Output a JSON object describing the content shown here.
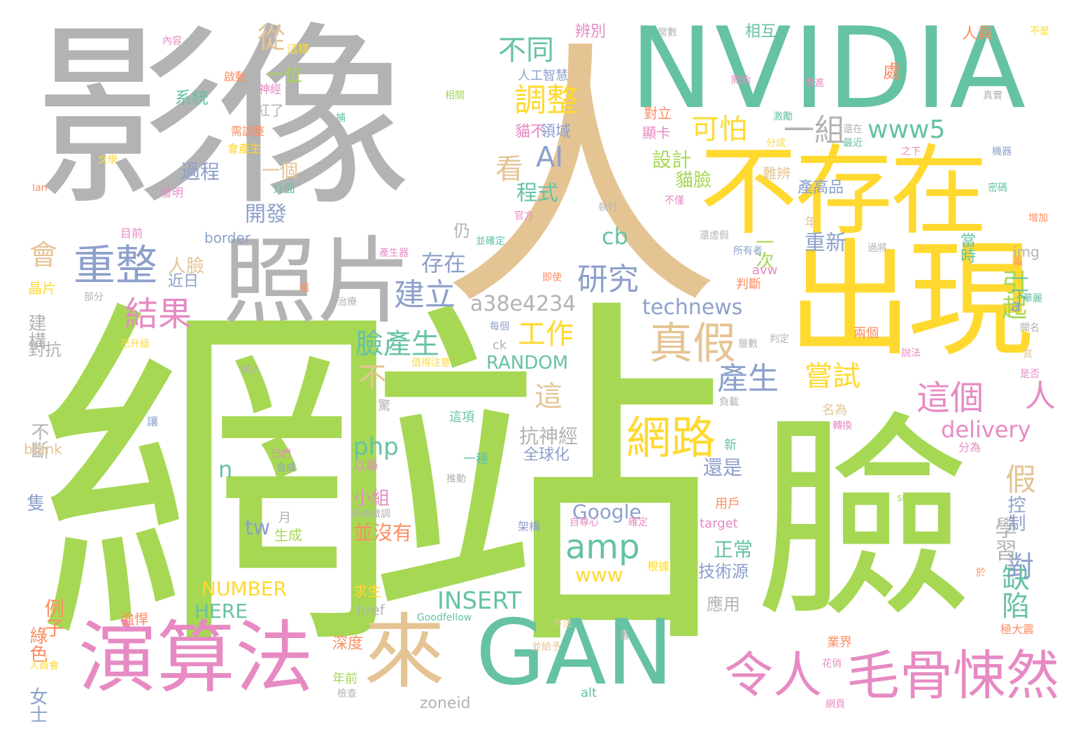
{
  "colors": {
    "gray": "#b3b3b3",
    "green": "#a6d854",
    "teal": "#66c2a5",
    "yellow": "#ffd92f",
    "tan": "#e5c494",
    "blue": "#8da0cb",
    "pink": "#e78ac3",
    "orange": "#fc8d62"
  },
  "words": [
    {
      "text": "影像",
      "color": "gray"
    },
    {
      "text": "人",
      "color": "tan"
    },
    {
      "text": "NVIDIA",
      "color": "teal"
    },
    {
      "text": "網站",
      "color": "green"
    },
    {
      "text": "臉",
      "color": "green"
    },
    {
      "text": "不存在",
      "color": "yellow"
    },
    {
      "text": "出現",
      "color": "yellow"
    },
    {
      "text": "照片",
      "color": "gray"
    },
    {
      "text": "演算法",
      "color": "pink"
    },
    {
      "text": "GAN",
      "color": "teal"
    },
    {
      "text": "來",
      "color": "tan"
    },
    {
      "text": "毛骨悚然",
      "color": "pink"
    },
    {
      "text": "令人",
      "color": "pink"
    },
    {
      "text": "重整",
      "color": "blue"
    },
    {
      "text": "結果",
      "color": "pink"
    },
    {
      "text": "網路",
      "color": "yellow"
    },
    {
      "text": "真假",
      "color": "tan"
    },
    {
      "text": "這個",
      "color": "pink"
    },
    {
      "text": "人",
      "color": "pink"
    },
    {
      "text": "調整",
      "color": "yellow"
    },
    {
      "text": "amp",
      "color": "teal"
    },
    {
      "text": "研究",
      "color": "blue"
    },
    {
      "text": "建立",
      "color": "blue"
    },
    {
      "text": "a38e4234",
      "color": "gray"
    },
    {
      "text": "可怕",
      "color": "yellow"
    },
    {
      "text": "一組",
      "color": "gray"
    },
    {
      "text": "www5",
      "color": "teal"
    },
    {
      "text": "不同",
      "color": "teal"
    },
    {
      "text": "AI",
      "color": "blue"
    },
    {
      "text": "看",
      "color": "tan"
    },
    {
      "text": "產生",
      "color": "blue"
    },
    {
      "text": "嘗試",
      "color": "yellow"
    },
    {
      "text": "臉產生",
      "color": "teal"
    },
    {
      "text": "工作",
      "color": "yellow"
    },
    {
      "text": "technews",
      "color": "blue"
    },
    {
      "text": "delivery",
      "color": "pink"
    },
    {
      "text": "缺陷",
      "color": "teal"
    },
    {
      "text": "對",
      "color": "blue"
    },
    {
      "text": "假",
      "color": "tan"
    },
    {
      "text": "學習",
      "color": "gray"
    },
    {
      "text": "引起",
      "color": "green"
    },
    {
      "text": "從",
      "color": "tan"
    },
    {
      "text": "會",
      "color": "tan"
    },
    {
      "text": "存在",
      "color": "blue"
    },
    {
      "text": "開發",
      "color": "blue"
    },
    {
      "text": "程式",
      "color": "teal"
    },
    {
      "text": "設計",
      "color": "green"
    },
    {
      "text": "貓臉",
      "color": "green"
    },
    {
      "text": "重新",
      "color": "blue"
    },
    {
      "text": "一次",
      "color": "green"
    },
    {
      "text": "cb",
      "color": "teal"
    },
    {
      "text": "過程",
      "color": "blue"
    },
    {
      "text": "一個",
      "color": "tan"
    },
    {
      "text": "一位",
      "color": "green"
    },
    {
      "text": "系統",
      "color": "teal"
    },
    {
      "text": "人臉",
      "color": "tan"
    },
    {
      "text": "近日",
      "color": "blue"
    },
    {
      "text": "建構",
      "color": "gray"
    },
    {
      "text": "對抗",
      "color": "gray"
    },
    {
      "text": "不",
      "color": "tan"
    },
    {
      "text": "這",
      "color": "tan"
    },
    {
      "text": "RANDOM",
      "color": "teal"
    },
    {
      "text": "php",
      "color": "teal"
    },
    {
      "text": "n",
      "color": "teal"
    },
    {
      "text": "Google",
      "color": "blue"
    },
    {
      "text": "tw",
      "color": "blue"
    },
    {
      "text": "www",
      "color": "yellow"
    },
    {
      "text": "INSERT",
      "color": "teal"
    },
    {
      "text": "NUMBER",
      "color": "yellow"
    },
    {
      "text": "HERE",
      "color": "teal"
    },
    {
      "text": "抗神經",
      "color": "gray"
    },
    {
      "text": "全球化",
      "color": "blue"
    },
    {
      "text": "小組",
      "color": "pink"
    },
    {
      "text": "並沒有",
      "color": "orange"
    },
    {
      "text": "不斷",
      "color": "gray"
    },
    {
      "text": "例子",
      "color": "orange"
    },
    {
      "text": "綠色",
      "color": "orange"
    },
    {
      "text": "女士",
      "color": "blue"
    },
    {
      "text": "還是",
      "color": "blue"
    },
    {
      "text": "正常",
      "color": "teal"
    },
    {
      "text": "技術源",
      "color": "blue"
    },
    {
      "text": "應用",
      "color": "gray"
    },
    {
      "text": "控制",
      "color": "blue"
    },
    {
      "text": "一下",
      "color": "teal"
    },
    {
      "text": "a",
      "color": "blue"
    },
    {
      "text": "年",
      "color": "tan"
    },
    {
      "text": "當時",
      "color": "teal"
    },
    {
      "text": "產高品",
      "color": "blue"
    },
    {
      "text": "難辨",
      "color": "tan"
    },
    {
      "text": "顯卡",
      "color": "pink"
    },
    {
      "text": "對立",
      "color": "orange"
    },
    {
      "text": "貓不",
      "color": "pink"
    },
    {
      "text": "領域",
      "color": "blue"
    },
    {
      "text": "辨別",
      "color": "pink"
    },
    {
      "text": "相互",
      "color": "teal"
    },
    {
      "text": "人員",
      "color": "orange"
    },
    {
      "text": "人工智慧",
      "color": "blue"
    },
    {
      "text": "紅了",
      "color": "gray"
    },
    {
      "text": "仍",
      "color": "gray"
    },
    {
      "text": "處",
      "color": "orange"
    },
    {
      "text": "border",
      "color": "blue"
    },
    {
      "text": "晶片",
      "color": "yellow"
    },
    {
      "text": "深度",
      "color": "orange"
    },
    {
      "text": "年前",
      "color": "green"
    },
    {
      "text": "zoneid",
      "color": "gray"
    },
    {
      "text": "alt",
      "color": "teal"
    },
    {
      "text": "Goodfellow",
      "color": "teal"
    },
    {
      "text": "target",
      "color": "pink"
    },
    {
      "text": "用戶",
      "color": "orange"
    },
    {
      "text": "src",
      "color": "green"
    },
    {
      "text": "href",
      "color": "gray"
    },
    {
      "text": "blank",
      "color": "tan"
    },
    {
      "text": "img",
      "color": "gray"
    },
    {
      "text": "avw",
      "color": "pink"
    },
    {
      "text": "ck",
      "color": "gray"
    },
    {
      "text": "隻",
      "color": "blue"
    },
    {
      "text": "生成",
      "color": "green"
    },
    {
      "text": "月",
      "color": "gray"
    },
    {
      "text": "以尋",
      "color": "pink"
    },
    {
      "text": "一種",
      "color": "teal"
    },
    {
      "text": "這項",
      "color": "teal"
    },
    {
      "text": "名為",
      "color": "tan"
    },
    {
      "text": "分為",
      "color": "pink"
    },
    {
      "text": "新",
      "color": "teal"
    },
    {
      "text": "判斷",
      "color": "orange"
    },
    {
      "text": "兩個",
      "color": "orange"
    },
    {
      "text": "強悍",
      "color": "orange"
    },
    {
      "text": "求生",
      "color": "yellow"
    },
    {
      "text": "業界",
      "color": "orange"
    },
    {
      "text": "花俏",
      "color": "pink"
    },
    {
      "text": "網頁",
      "color": "pink"
    },
    {
      "text": "極大震",
      "color": "orange"
    },
    {
      "text": "並給予",
      "color": "tan"
    },
    {
      "text": "最後微調",
      "color": "gray"
    },
    {
      "text": "自尊心",
      "color": "pink"
    },
    {
      "text": "確定",
      "color": "pink"
    },
    {
      "text": "根據",
      "color": "yellow"
    },
    {
      "text": "架構",
      "color": "blue"
    },
    {
      "text": "推動",
      "color": "gray"
    },
    {
      "text": "已升級",
      "color": "yellow"
    },
    {
      "text": "值得注意",
      "color": "yellow"
    },
    {
      "text": "輸入",
      "color": "gray"
    },
    {
      "text": "讓",
      "color": "blue"
    },
    {
      "text": "已們",
      "color": "pink"
    },
    {
      "text": "合成",
      "color": "blue"
    },
    {
      "text": "每個",
      "color": "blue"
    },
    {
      "text": "即使",
      "color": "orange"
    },
    {
      "text": "並確定",
      "color": "teal"
    },
    {
      "text": "產生器",
      "color": "pink"
    },
    {
      "text": "治療",
      "color": "gray"
    },
    {
      "text": "部分",
      "color": "gray"
    },
    {
      "text": "組",
      "color": "orange"
    },
    {
      "text": "目前",
      "color": "pink"
    },
    {
      "text": "發明",
      "color": "pink"
    },
    {
      "text": "介面",
      "color": "teal"
    },
    {
      "text": "會產生",
      "color": "yellow"
    },
    {
      "text": "需調整",
      "color": "orange"
    },
    {
      "text": "神經",
      "color": "pink"
    },
    {
      "text": "啟動",
      "color": "orange"
    },
    {
      "text": "這樣",
      "color": "yellow"
    },
    {
      "text": "內容",
      "color": "pink"
    },
    {
      "text": "文學",
      "color": "yellow"
    },
    {
      "text": "Ian",
      "color": "orange"
    },
    {
      "text": "相關",
      "color": "green"
    },
    {
      "text": "捕",
      "color": "teal"
    },
    {
      "text": "開始",
      "color": "pink"
    },
    {
      "text": "改進",
      "color": "pink"
    },
    {
      "text": "常數",
      "color": "gray"
    },
    {
      "text": "不是",
      "color": "yellow"
    },
    {
      "text": "真實",
      "color": "gray"
    },
    {
      "text": "激勵",
      "color": "teal"
    },
    {
      "text": "還在",
      "color": "gray"
    },
    {
      "text": "最近",
      "color": "teal"
    },
    {
      "text": "分成",
      "color": "yellow"
    },
    {
      "text": "之下",
      "color": "pink"
    },
    {
      "text": "機器",
      "color": "blue"
    },
    {
      "text": "密碼",
      "color": "teal"
    },
    {
      "text": "增加",
      "color": "orange"
    },
    {
      "text": "不僅",
      "color": "pink"
    },
    {
      "text": "官方",
      "color": "pink"
    },
    {
      "text": "執行",
      "color": "gray"
    },
    {
      "text": "還虛假",
      "color": "gray"
    },
    {
      "text": "所有者",
      "color": "blue"
    },
    {
      "text": "過將",
      "color": "gray"
    },
    {
      "text": "兩",
      "color": "orange"
    },
    {
      "text": "華麗",
      "color": "teal"
    },
    {
      "text": "聞名",
      "color": "gray"
    },
    {
      "text": "質",
      "color": "tan"
    },
    {
      "text": "是否",
      "color": "pink"
    },
    {
      "text": "說法",
      "color": "pink"
    },
    {
      "text": "負載",
      "color": "gray"
    },
    {
      "text": "轉換",
      "color": "pink"
    },
    {
      "text": "判定",
      "color": "gray"
    },
    {
      "text": "層數",
      "color": "gray"
    },
    {
      "text": "於",
      "color": "orange"
    },
    {
      "text": "方法",
      "color": "tan"
    },
    {
      "text": "舊",
      "color": "gray"
    },
    {
      "text": "檢查",
      "color": "gray"
    },
    {
      "text": "人員會",
      "color": "yellow"
    },
    {
      "text": "驚",
      "color": "gray"
    }
  ]
}
